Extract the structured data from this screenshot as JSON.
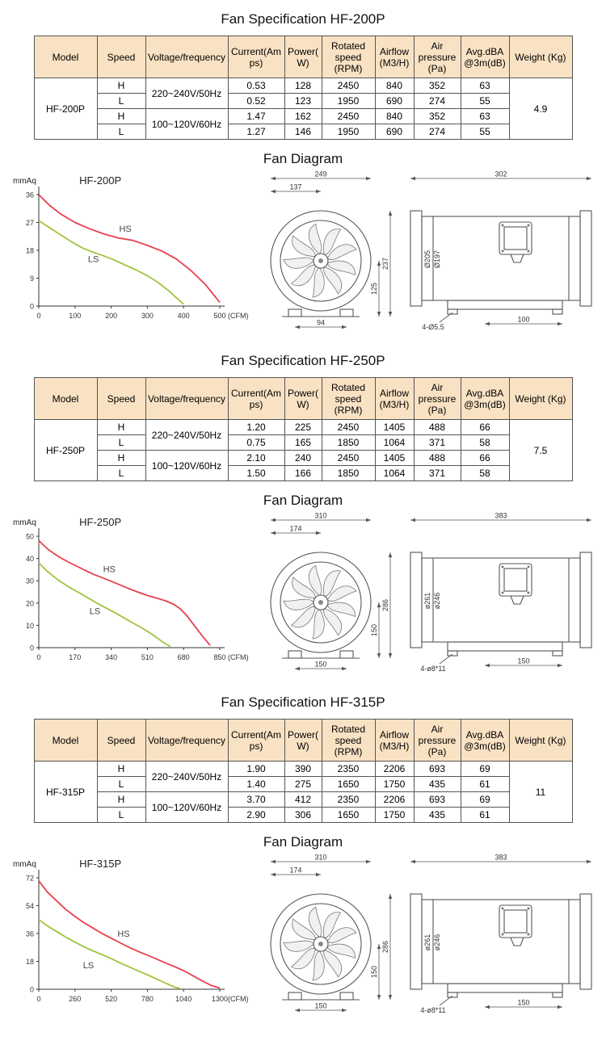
{
  "colors": {
    "table_header_bg": "#F9E2C3",
    "table_border": "#555555",
    "hs_curve": "#E8404F",
    "ls_curve": "#9EC43C"
  },
  "table_headers": [
    "Model",
    "Speed",
    "Voltage/frequency",
    "Current(Amps)",
    "Power(W)",
    "Rotated speed (RPM)",
    "Airflow (M3/H)",
    "Air pressure (Pa)",
    "Avg.dBA @3m(dB)",
    "Weight (Kg)"
  ],
  "sections": [
    {
      "spec_title": "Fan Specification HF-200P",
      "diagram_title": "Fan Diagram",
      "model": "HF-200P",
      "weight": "4.9",
      "groups": [
        {
          "voltage": "220~240V/50Hz",
          "rows": [
            {
              "speed": "H",
              "current": "0.53",
              "power": "128",
              "rpm": "2450",
              "airflow": "840",
              "pressure": "352",
              "dba": "63"
            },
            {
              "speed": "L",
              "current": "0.52",
              "power": "123",
              "rpm": "1950",
              "airflow": "690",
              "pressure": "274",
              "dba": "55"
            }
          ]
        },
        {
          "voltage": "100~120V/60Hz",
          "rows": [
            {
              "speed": "H",
              "current": "1.47",
              "power": "162",
              "rpm": "2450",
              "airflow": "840",
              "pressure": "352",
              "dba": "63"
            },
            {
              "speed": "L",
              "current": "1.27",
              "power": "146",
              "rpm": "1950",
              "airflow": "690",
              "pressure": "274",
              "dba": "55"
            }
          ]
        }
      ],
      "front_view": {
        "overall_width": "249",
        "inlet_width": "137",
        "overall_height": "237",
        "lower_height": "125",
        "foot_spacing": "94"
      },
      "side_view": {
        "overall_length": "302",
        "outer_diameter": "Ø205",
        "inner_diameter": "Ø197",
        "mounting_holes": "4-Ø5.5",
        "foot_length": "100"
      }
    },
    {
      "spec_title": "Fan Specification HF-250P",
      "diagram_title": "Fan Diagram",
      "model": "HF-250P",
      "weight": "7.5",
      "groups": [
        {
          "voltage": "220~240V/50Hz",
          "rows": [
            {
              "speed": "H",
              "current": "1.20",
              "power": "225",
              "rpm": "2450",
              "airflow": "1405",
              "pressure": "488",
              "dba": "66"
            },
            {
              "speed": "L",
              "current": "0.75",
              "power": "165",
              "rpm": "1850",
              "airflow": "1064",
              "pressure": "371",
              "dba": "58"
            }
          ]
        },
        {
          "voltage": "100~120V/60Hz",
          "rows": [
            {
              "speed": "H",
              "current": "2.10",
              "power": "240",
              "rpm": "2450",
              "airflow": "1405",
              "pressure": "488",
              "dba": "66"
            },
            {
              "speed": "L",
              "current": "1.50",
              "power": "166",
              "rpm": "1850",
              "airflow": "1064",
              "pressure": "371",
              "dba": "58"
            }
          ]
        }
      ],
      "front_view": {
        "overall_width": "310",
        "inlet_width": "174",
        "overall_height": "286",
        "lower_height": "150",
        "foot_spacing": "150"
      },
      "side_view": {
        "overall_length": "383",
        "outer_diameter": "ø261",
        "inner_diameter": "ø246",
        "mounting_holes": "4-ø8*11",
        "foot_length": "150"
      }
    },
    {
      "spec_title": "Fan Specification HF-315P",
      "diagram_title": "Fan Diagram",
      "model": "HF-315P",
      "weight": "11",
      "groups": [
        {
          "voltage": "220~240V/50Hz",
          "rows": [
            {
              "speed": "H",
              "current": "1.90",
              "power": "390",
              "rpm": "2350",
              "airflow": "2206",
              "pressure": "693",
              "dba": "69"
            },
            {
              "speed": "L",
              "current": "1.40",
              "power": "275",
              "rpm": "1650",
              "airflow": "1750",
              "pressure": "435",
              "dba": "61"
            }
          ]
        },
        {
          "voltage": "100~120V/60Hz",
          "rows": [
            {
              "speed": "H",
              "current": "3.70",
              "power": "412",
              "rpm": "2350",
              "airflow": "2206",
              "pressure": "693",
              "dba": "69"
            },
            {
              "speed": "L",
              "current": "2.90",
              "power": "306",
              "rpm": "1650",
              "airflow": "1750",
              "pressure": "435",
              "dba": "61"
            }
          ]
        }
      ],
      "front_view": {
        "overall_width": "310",
        "inlet_width": "174",
        "overall_height": "286",
        "lower_height": "150",
        "foot_spacing": "150"
      },
      "side_view": {
        "overall_length": "383",
        "outer_diameter": "ø261",
        "inner_diameter": "ø246",
        "mounting_holes": "4-ø8*11",
        "foot_length": "150"
      }
    }
  ],
  "chart_data": [
    {
      "type": "line",
      "title": "HF-200P",
      "ylabel": "mmAq",
      "xlabel": "(CFM)",
      "yticks": [
        0,
        9,
        18,
        27,
        36
      ],
      "xticks": [
        0,
        100,
        200,
        300,
        400,
        500
      ],
      "ylim": [
        0,
        36
      ],
      "xlim": [
        0,
        500
      ],
      "series": [
        {
          "name": "HS",
          "color": "#E8404F",
          "label_at": [
            222,
            24
          ],
          "points": [
            [
              0,
              36
            ],
            [
              30,
              32.5
            ],
            [
              60,
              29.8
            ],
            [
              100,
              27
            ],
            [
              140,
              25
            ],
            [
              180,
              23.3
            ],
            [
              220,
              22
            ],
            [
              260,
              21.2
            ],
            [
              300,
              19.6
            ],
            [
              340,
              17.8
            ],
            [
              380,
              15.2
            ],
            [
              420,
              11.5
            ],
            [
              460,
              7
            ],
            [
              500,
              1.2
            ]
          ]
        },
        {
          "name": "LS",
          "color": "#9EC43C",
          "label_at": [
            136,
            14.2
          ],
          "points": [
            [
              0,
              27.6
            ],
            [
              30,
              25.3
            ],
            [
              60,
              23
            ],
            [
              90,
              20.8
            ],
            [
              120,
              18.8
            ],
            [
              150,
              17.4
            ],
            [
              180,
              16.2
            ],
            [
              210,
              14.8
            ],
            [
              240,
              13.2
            ],
            [
              270,
              11.6
            ],
            [
              300,
              9.8
            ],
            [
              330,
              7.6
            ],
            [
              360,
              4.8
            ],
            [
              400,
              0.6
            ]
          ]
        }
      ]
    },
    {
      "type": "line",
      "title": "HF-250P",
      "ylabel": "mmAq",
      "xlabel": "(CFM)",
      "yticks": [
        0,
        10,
        20,
        30,
        40,
        50
      ],
      "xticks": [
        0,
        170,
        340,
        510,
        680,
        850
      ],
      "ylim": [
        0,
        50
      ],
      "xlim": [
        0,
        850
      ],
      "series": [
        {
          "name": "HS",
          "color": "#E8404F",
          "label_at": [
            302,
            33.8
          ],
          "points": [
            [
              0,
              48
            ],
            [
              45,
              44
            ],
            [
              90,
              41
            ],
            [
              135,
              38.6
            ],
            [
              170,
              37
            ],
            [
              215,
              34.8
            ],
            [
              255,
              33
            ],
            [
              300,
              31.3
            ],
            [
              340,
              29.8
            ],
            [
              385,
              28
            ],
            [
              425,
              26.4
            ],
            [
              470,
              24.8
            ],
            [
              510,
              23.4
            ],
            [
              555,
              22.2
            ],
            [
              595,
              21
            ],
            [
              635,
              19.4
            ],
            [
              665,
              17.4
            ],
            [
              695,
              14.4
            ],
            [
              730,
              10
            ],
            [
              770,
              5
            ],
            [
              805,
              1
            ]
          ]
        },
        {
          "name": "LS",
          "color": "#9EC43C",
          "label_at": [
            238,
            15
          ],
          "points": [
            [
              0,
              38
            ],
            [
              45,
              33.8
            ],
            [
              90,
              30.4
            ],
            [
              135,
              27.6
            ],
            [
              170,
              25.6
            ],
            [
              195,
              24.4
            ],
            [
              215,
              23.2
            ],
            [
              255,
              21
            ],
            [
              295,
              18.8
            ],
            [
              340,
              16.6
            ],
            [
              385,
              14.2
            ],
            [
              425,
              12
            ],
            [
              470,
              9.6
            ],
            [
              510,
              7.4
            ],
            [
              550,
              4.8
            ],
            [
              590,
              2
            ],
            [
              618,
              0.5
            ]
          ]
        }
      ]
    },
    {
      "type": "line",
      "title": "HF-315P",
      "ylabel": "mmAq",
      "xlabel": "(CFM)",
      "yticks": [
        0,
        18,
        36,
        54,
        72
      ],
      "xticks": [
        0,
        260,
        520,
        780,
        1040,
        1300
      ],
      "ylim": [
        0,
        72
      ],
      "xlim": [
        0,
        1300
      ],
      "series": [
        {
          "name": "HS",
          "color": "#E8404F",
          "label_at": [
            565,
            34
          ],
          "points": [
            [
              0,
              70
            ],
            [
              60,
              63
            ],
            [
              130,
              57
            ],
            [
              195,
              51.5
            ],
            [
              260,
              47
            ],
            [
              325,
              43
            ],
            [
              390,
              39.5
            ],
            [
              455,
              36
            ],
            [
              520,
              33
            ],
            [
              585,
              30
            ],
            [
              650,
              27
            ],
            [
              715,
              24.4
            ],
            [
              780,
              22
            ],
            [
              845,
              19.6
            ],
            [
              910,
              17
            ],
            [
              975,
              14.6
            ],
            [
              1040,
              12
            ],
            [
              1105,
              8.8
            ],
            [
              1170,
              5.6
            ],
            [
              1235,
              2.6
            ],
            [
              1300,
              0.8
            ]
          ]
        },
        {
          "name": "LS",
          "color": "#9EC43C",
          "label_at": [
            318,
            13.5
          ],
          "points": [
            [
              0,
              45
            ],
            [
              60,
              41
            ],
            [
              130,
              37.2
            ],
            [
              195,
              33.6
            ],
            [
              260,
              30.4
            ],
            [
              325,
              27.4
            ],
            [
              390,
              24.8
            ],
            [
              455,
              22.4
            ],
            [
              520,
              19.8
            ],
            [
              585,
              17
            ],
            [
              650,
              14.4
            ],
            [
              715,
              11.8
            ],
            [
              780,
              9.4
            ],
            [
              845,
              6.6
            ],
            [
              910,
              4
            ],
            [
              975,
              1.4
            ],
            [
              1015,
              0.4
            ]
          ]
        }
      ]
    }
  ]
}
